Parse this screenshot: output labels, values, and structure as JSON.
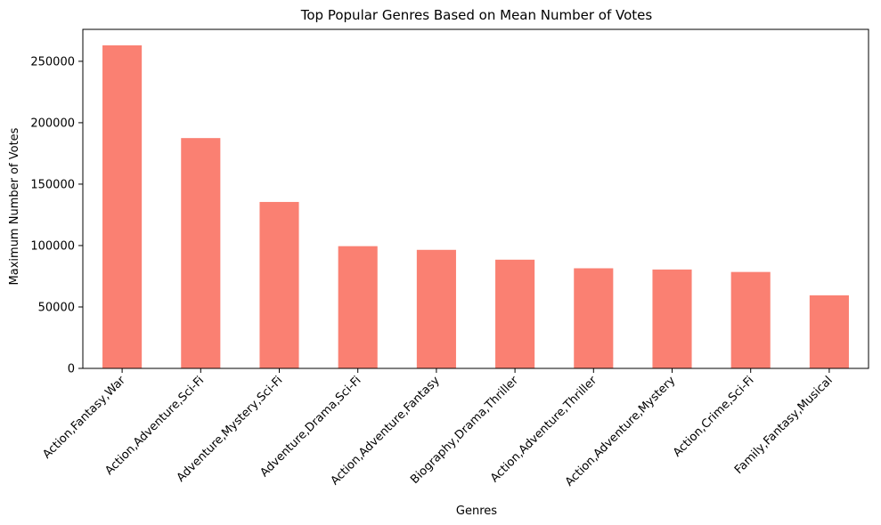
{
  "chart_data": {
    "type": "bar",
    "title": "Top Popular Genres Based on Mean Number of Votes",
    "xlabel": "Genres",
    "ylabel": "Maximum Number of Votes",
    "categories": [
      "Action,Fantasy,War",
      "Action,Adventure,Sci-Fi",
      "Adventure,Mystery,Sci-Fi",
      "Adventure,Drama,Sci-Fi",
      "Action,Adventure,Fantasy",
      "Biography,Drama,Thriller",
      "Action,Adventure,Thriller",
      "Action,Adventure,Mystery",
      "Action,Crime,Sci-Fi",
      "Family,Fantasy,Musical"
    ],
    "values": [
      263000,
      187500,
      135500,
      99500,
      96500,
      88500,
      81500,
      80500,
      78500,
      59500
    ],
    "ylim": [
      0,
      276000
    ],
    "yticks": [
      0,
      50000,
      100000,
      150000,
      200000,
      250000
    ],
    "ytick_labels": [
      "0",
      "50000",
      "100000",
      "150000",
      "200000",
      "250000"
    ],
    "bar_color": "#fa8072",
    "grid": false,
    "legend": "none"
  }
}
